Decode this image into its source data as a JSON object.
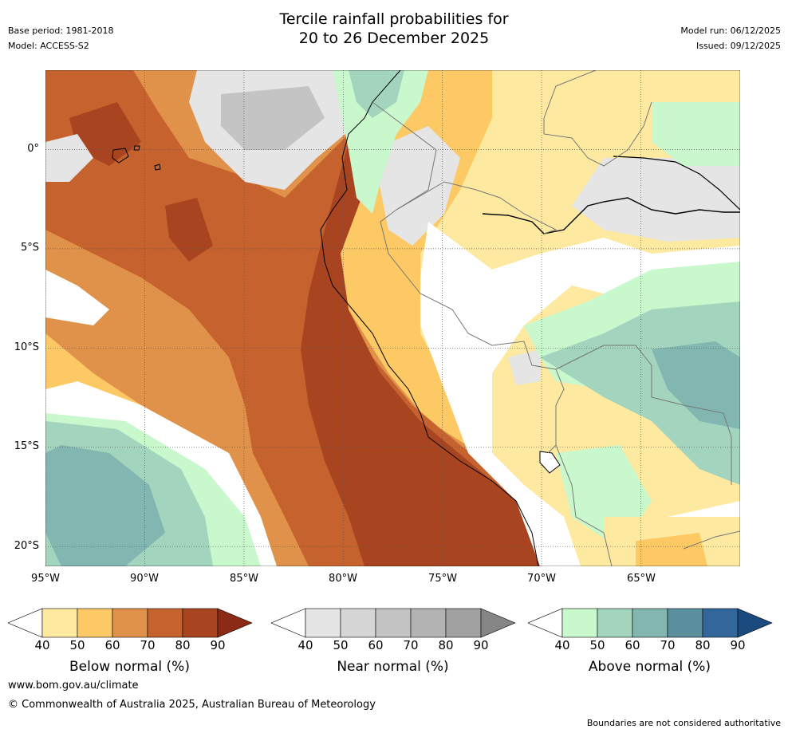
{
  "header": {
    "title_line1": "Tercile rainfall probabilities for",
    "title_line2": "20 to 26 December 2025",
    "base_period": "Base period: 1981-2018",
    "model": "Model: ACCESS-S2",
    "model_run": "Model run: 06/12/2025",
    "issued": "Issued: 09/12/2025"
  },
  "map": {
    "lat_labels": [
      "0°",
      "5°S",
      "10°S",
      "15°S",
      "20°S"
    ],
    "lon_labels": [
      "95°W",
      "90°W",
      "85°W",
      "80°W",
      "75°W",
      "70°W",
      "65°W"
    ],
    "extent": {
      "lon_min": -95,
      "lon_max": -60,
      "lat_min": -21,
      "lat_max": 4
    }
  },
  "colorbars": [
    {
      "title": "Below normal (%)",
      "ticks": [
        "40",
        "50",
        "60",
        "70",
        "80",
        "90"
      ],
      "colors": [
        "#ffffff",
        "#fdeaa0",
        "#fdc964",
        "#e0924a",
        "#c5622e",
        "#a84420",
        "#8b2a15"
      ]
    },
    {
      "title": "Near normal (%)",
      "ticks": [
        "40",
        "50",
        "60",
        "70",
        "80",
        "90"
      ],
      "colors": [
        "#ffffff",
        "#e5e5e5",
        "#d6d6d6",
        "#c4c4c4",
        "#b3b3b3",
        "#a1a1a1",
        "#858585"
      ]
    },
    {
      "title": "Above normal (%)",
      "ticks": [
        "40",
        "50",
        "60",
        "70",
        "80",
        "90"
      ],
      "colors": [
        "#ffffff",
        "#c8f8cc",
        "#a3d4bd",
        "#82b6b0",
        "#5c8f9e",
        "#33669b",
        "#1a4a7e"
      ]
    }
  ],
  "footer": {
    "url": "www.bom.gov.au/climate",
    "copyright": "© Commonwealth of Australia 2025, Australian Bureau of Meteorology",
    "note": "Boundaries are not considered authoritative"
  }
}
